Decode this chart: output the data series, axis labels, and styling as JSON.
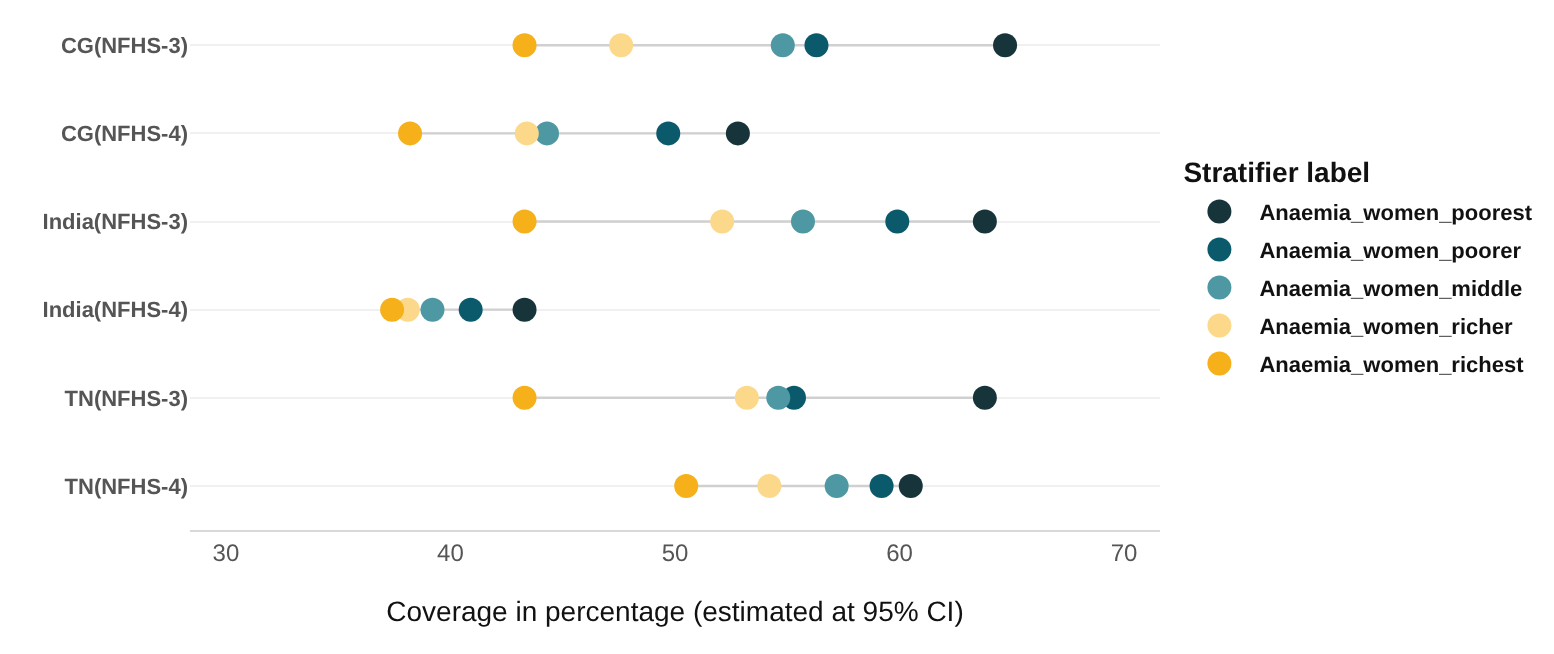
{
  "chart_data": {
    "type": "scatter",
    "xlabel": "Coverage in percentage (estimated at 95% CI)",
    "legend_title": "Stratifier label",
    "categories": [
      "CG(NFHS-3)",
      "CG(NFHS-4)",
      "India(NFHS-3)",
      "India(NFHS-4)",
      "TN(NFHS-3)",
      "TN(NFHS-4)"
    ],
    "orientation": "horizontal",
    "series": [
      {
        "name": "Anaemia_women_poorest",
        "color": "#17343b",
        "values": [
          64.7,
          52.8,
          63.8,
          43.3,
          63.8,
          60.5
        ]
      },
      {
        "name": "Anaemia_women_poorer",
        "color": "#0b5a6b",
        "values": [
          56.3,
          49.7,
          59.9,
          40.9,
          55.3,
          59.2
        ]
      },
      {
        "name": "Anaemia_women_middle",
        "color": "#4e98a3",
        "values": [
          54.8,
          44.3,
          55.7,
          39.2,
          54.6,
          57.2
        ]
      },
      {
        "name": "Anaemia_women_richer",
        "color": "#fcd98a",
        "values": [
          47.6,
          43.4,
          52.1,
          38.1,
          53.2,
          54.2
        ]
      },
      {
        "name": "Anaemia_women_richest",
        "color": "#f5b01a",
        "values": [
          43.3,
          38.2,
          43.3,
          37.4,
          43.3,
          50.5
        ]
      }
    ],
    "xlim": [
      28.4,
      71.6
    ],
    "xticks": [
      30,
      40,
      50,
      60,
      70
    ],
    "grid": "y",
    "legend": "right",
    "marker": "circle"
  }
}
